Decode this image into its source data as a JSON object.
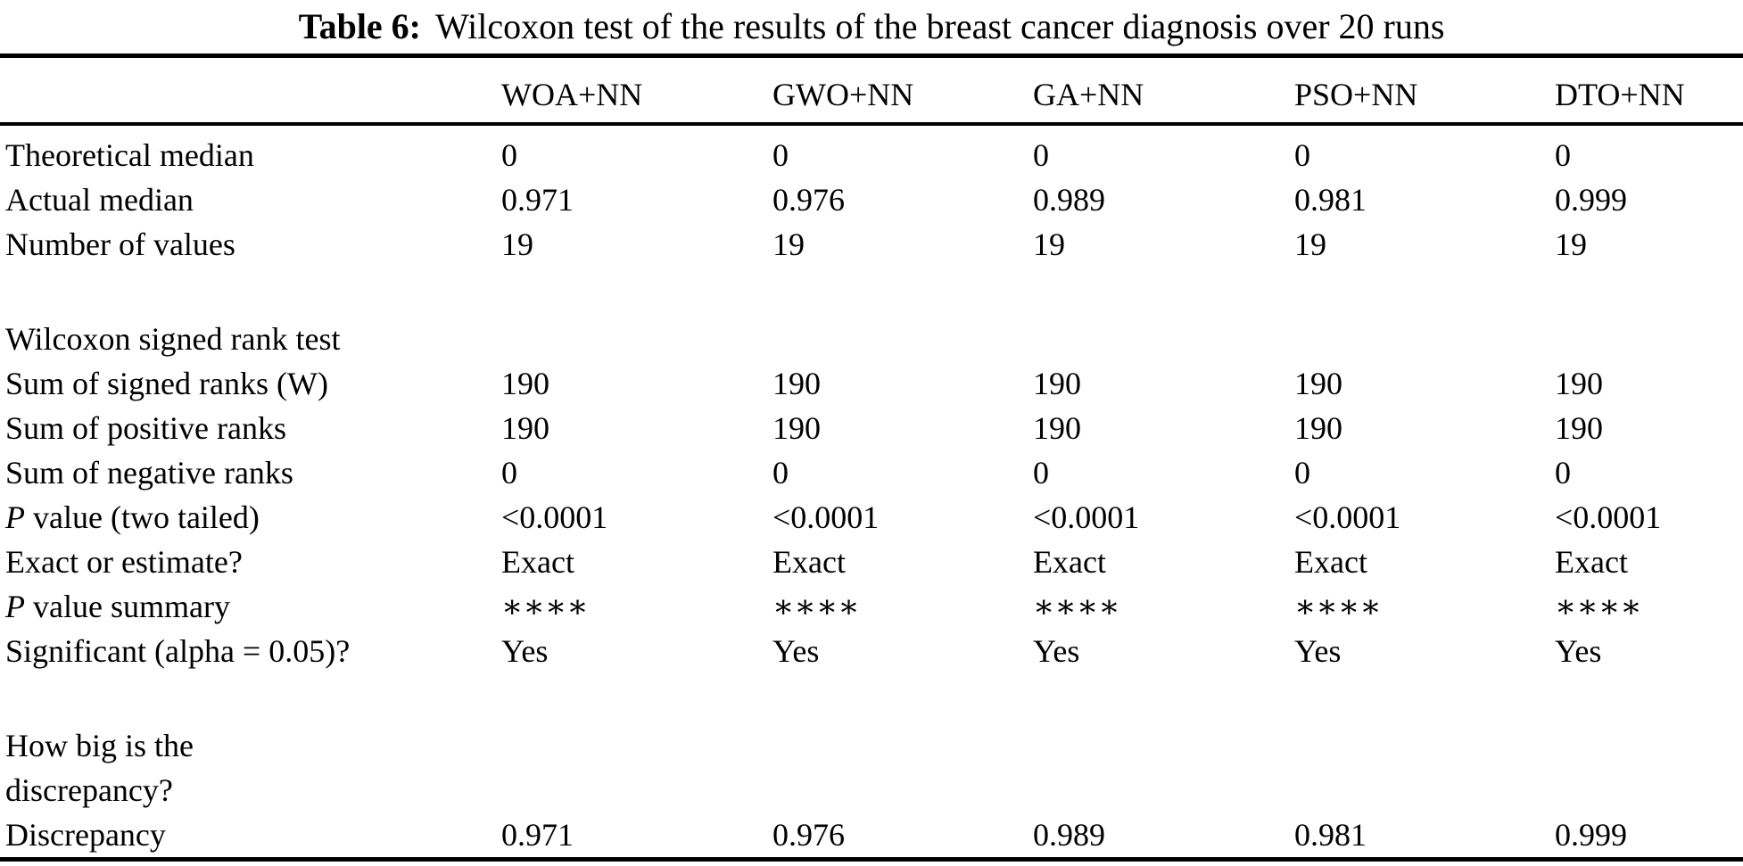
{
  "colors": {
    "background": "#ffffff",
    "text": "#000000",
    "rule": "#000000"
  },
  "title": {
    "label": "Table 6:",
    "text": "Wilcoxon test of the results of the breast cancer diagnosis over 20 runs"
  },
  "table": {
    "columns": [
      "WOA+NN",
      "GWO+NN",
      "GA+NN",
      "PSO+NN",
      "DTO+NN"
    ],
    "rows": [
      {
        "type": "data",
        "label": "Theoretical median",
        "values": [
          "0",
          "0",
          "0",
          "0",
          "0"
        ]
      },
      {
        "type": "data",
        "label": "Actual median",
        "values": [
          "0.971",
          "0.976",
          "0.989",
          "0.981",
          "0.999"
        ]
      },
      {
        "type": "data",
        "label": "Number of values",
        "values": [
          "19",
          "19",
          "19",
          "19",
          "19"
        ]
      },
      {
        "type": "spacer"
      },
      {
        "type": "section",
        "lines": [
          "Wilcoxon signed rank test"
        ]
      },
      {
        "type": "data",
        "label": "Sum of signed ranks (W)",
        "values": [
          "190",
          "190",
          "190",
          "190",
          "190"
        ]
      },
      {
        "type": "data",
        "label": "Sum of positive ranks",
        "values": [
          "190",
          "190",
          "190",
          "190",
          "190"
        ]
      },
      {
        "type": "data",
        "label": "Sum of negative ranks",
        "values": [
          "0",
          "0",
          "0",
          "0",
          "0"
        ]
      },
      {
        "type": "data",
        "label": "P value (two tailed)",
        "italic_first": true,
        "values": [
          "<0.0001",
          "<0.0001",
          "<0.0001",
          "<0.0001",
          "<0.0001"
        ]
      },
      {
        "type": "data",
        "label": "Exact or estimate?",
        "values": [
          "Exact",
          "Exact",
          "Exact",
          "Exact",
          "Exact"
        ]
      },
      {
        "type": "data",
        "label": "P value summary",
        "italic_first": true,
        "values": [
          "∗∗∗∗",
          "∗∗∗∗",
          "∗∗∗∗",
          "∗∗∗∗",
          "∗∗∗∗"
        ]
      },
      {
        "type": "data",
        "label": "Significant (alpha = 0.05)?",
        "values": [
          "Yes",
          "Yes",
          "Yes",
          "Yes",
          "Yes"
        ]
      },
      {
        "type": "spacer"
      },
      {
        "type": "section",
        "lines": [
          "How big is the",
          "discrepancy?"
        ]
      },
      {
        "type": "data",
        "label": "Discrepancy",
        "values": [
          "0.971",
          "0.976",
          "0.989",
          "0.981",
          "0.999"
        ]
      }
    ]
  }
}
